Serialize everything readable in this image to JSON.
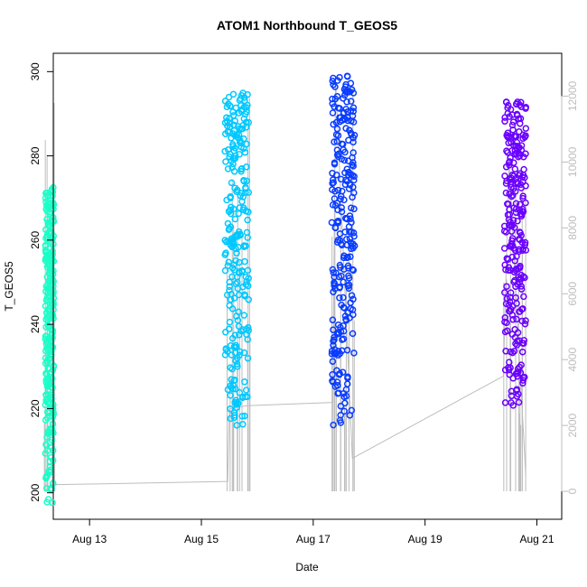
{
  "chart_data": {
    "type": "scatter",
    "title": "ATOM1 Northbound T_GEOS5",
    "xlabel": "Date",
    "ylabel": "T_GEOS5",
    "ylim": [
      198,
      302
    ],
    "y2lim": [
      -300,
      13000
    ],
    "x_ticks": [
      {
        "day": 13,
        "label": "Aug 13"
      },
      {
        "day": 15,
        "label": "Aug 15"
      },
      {
        "day": 17,
        "label": "Aug 17"
      },
      {
        "day": 19,
        "label": "Aug 19"
      },
      {
        "day": 21,
        "label": "Aug 21"
      }
    ],
    "xlim_days": [
      11.56,
      21.25
    ],
    "y_ticks": [
      200,
      220,
      240,
      260,
      280,
      300
    ],
    "y2_ticks": [
      0,
      2000,
      4000,
      6000,
      8000,
      10000,
      12000
    ],
    "grid": false,
    "secondary_color": "#bdbdbd",
    "secondary_trace": [
      {
        "day": 12.2,
        "value": 0
      },
      {
        "day": 12.3,
        "value": 200
      },
      {
        "day": 15.47,
        "value": 300
      },
      {
        "day": 15.5,
        "value": 2500
      },
      {
        "day": 15.8,
        "value": 2600
      },
      {
        "day": 17.35,
        "value": 2700
      },
      {
        "day": 17.4,
        "value": 12500
      },
      {
        "day": 17.7,
        "value": 1000
      },
      {
        "day": 20.4,
        "value": 3500
      },
      {
        "day": 20.5,
        "value": 10000
      },
      {
        "day": 20.8,
        "value": 500
      }
    ],
    "series": [
      {
        "color": "#1affc8",
        "day_range": [
          12.21,
          12.36
        ],
        "t_range": [
          197,
          273
        ]
      },
      {
        "color": "#00c8ff",
        "day_range": [
          15.42,
          15.85
        ],
        "t_range": [
          216,
          295
        ]
      },
      {
        "color": "#0a3cff",
        "day_range": [
          17.33,
          17.74
        ],
        "t_range": [
          216,
          299
        ]
      },
      {
        "color": "#6a00ff",
        "day_range": [
          20.42,
          20.81
        ],
        "t_range": [
          218,
          293
        ]
      }
    ]
  }
}
